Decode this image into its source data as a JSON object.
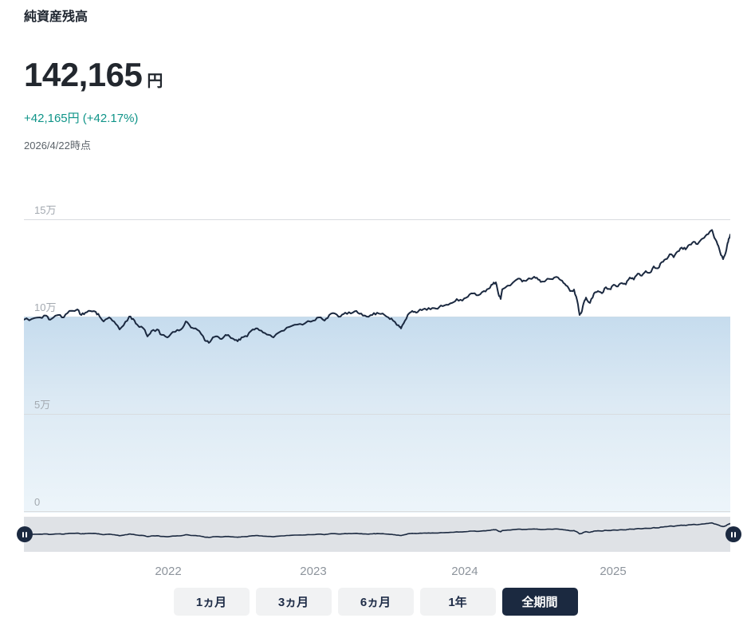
{
  "header": {
    "title": "純資産残高",
    "amount": "142,165",
    "amount_unit": "円",
    "change": "+42,165円 (+42.17%)",
    "as_of": "2026/4/22時点"
  },
  "colors": {
    "line": "#1b2940",
    "gain_text": "#0f9488",
    "area_fill_top": "#c6dcee",
    "area_fill_bottom": "#edf5fa",
    "gridline": "#d9dcdf",
    "tick_label": "#a3a9b0",
    "year_label": "#8d949c",
    "slider_track": "#dfe2e6",
    "handle": "#1b2940",
    "button_bg": "#f1f2f3",
    "button_text": "#1e2c47",
    "button_active_bg": "#1b2940",
    "button_active_text": "#ffffff"
  },
  "chart_data": {
    "type": "area",
    "title": "純資産残高の推移",
    "unit": "円",
    "ylim": [
      0,
      158000
    ],
    "grid": true,
    "principal_band_top_value": 100000,
    "end_value": 142165,
    "y_ticks": [
      {
        "label": "15万",
        "value": 150000,
        "line": true
      },
      {
        "label": "10万",
        "value": 100000,
        "line": false
      },
      {
        "label": "5万",
        "value": 50000,
        "line": true
      },
      {
        "label": "0",
        "value": 0,
        "line": true
      }
    ],
    "x_ticks": [
      {
        "label": "2022",
        "f": 0.2043
      },
      {
        "label": "2023",
        "f": 0.4097
      },
      {
        "label": "2024",
        "f": 0.6241
      },
      {
        "label": "2025",
        "f": 0.8341
      }
    ],
    "series": [
      {
        "name": "純資産残高",
        "points": [
          [
            0.0,
            98400
          ],
          [
            0.0113,
            98800
          ],
          [
            0.0226,
            99600
          ],
          [
            0.0316,
            100500
          ],
          [
            0.0372,
            98400
          ],
          [
            0.0485,
            100800
          ],
          [
            0.0564,
            99600
          ],
          [
            0.0643,
            102900
          ],
          [
            0.0756,
            103700
          ],
          [
            0.0813,
            100800
          ],
          [
            0.0869,
            102000
          ],
          [
            0.0937,
            102900
          ],
          [
            0.1016,
            102500
          ],
          [
            0.1072,
            100000
          ],
          [
            0.1129,
            97500
          ],
          [
            0.1208,
            99600
          ],
          [
            0.1275,
            97500
          ],
          [
            0.1354,
            93400
          ],
          [
            0.1411,
            95500
          ],
          [
            0.149,
            100000
          ],
          [
            0.1546,
            98800
          ],
          [
            0.1603,
            95900
          ],
          [
            0.1693,
            93900
          ],
          [
            0.1749,
            89800
          ],
          [
            0.1806,
            92600
          ],
          [
            0.1885,
            93400
          ],
          [
            0.1952,
            90600
          ],
          [
            0.2031,
            89300
          ],
          [
            0.2088,
            91400
          ],
          [
            0.2144,
            92200
          ],
          [
            0.2223,
            93400
          ],
          [
            0.2291,
            97500
          ],
          [
            0.2347,
            95500
          ],
          [
            0.2404,
            93900
          ],
          [
            0.2483,
            92600
          ],
          [
            0.2562,
            87700
          ],
          [
            0.2618,
            86500
          ],
          [
            0.2675,
            89300
          ],
          [
            0.2742,
            89800
          ],
          [
            0.2799,
            88500
          ],
          [
            0.2855,
            90600
          ],
          [
            0.2912,
            89800
          ],
          [
            0.2968,
            88500
          ],
          [
            0.3025,
            87300
          ],
          [
            0.3081,
            89300
          ],
          [
            0.316,
            89800
          ],
          [
            0.3239,
            93400
          ],
          [
            0.3307,
            93900
          ],
          [
            0.3386,
            91800
          ],
          [
            0.3465,
            90600
          ],
          [
            0.3533,
            89300
          ],
          [
            0.3646,
            92600
          ],
          [
            0.3758,
            94700
          ],
          [
            0.3871,
            95900
          ],
          [
            0.3984,
            96700
          ],
          [
            0.4097,
            97900
          ],
          [
            0.4176,
            99600
          ],
          [
            0.4255,
            97900
          ],
          [
            0.4323,
            100800
          ],
          [
            0.4402,
            101600
          ],
          [
            0.4481,
            100000
          ],
          [
            0.4549,
            102000
          ],
          [
            0.4628,
            101600
          ],
          [
            0.4707,
            102900
          ],
          [
            0.4774,
            101600
          ],
          [
            0.4853,
            100000
          ],
          [
            0.4932,
            100800
          ],
          [
            0.5,
            102000
          ],
          [
            0.5079,
            101600
          ],
          [
            0.5158,
            99600
          ],
          [
            0.5226,
            97900
          ],
          [
            0.5305,
            95500
          ],
          [
            0.5339,
            93900
          ],
          [
            0.5395,
            97900
          ],
          [
            0.5452,
            101600
          ],
          [
            0.5497,
            102900
          ],
          [
            0.5553,
            102000
          ],
          [
            0.561,
            103700
          ],
          [
            0.5677,
            104100
          ],
          [
            0.5756,
            103700
          ],
          [
            0.5835,
            104100
          ],
          [
            0.5903,
            105700
          ],
          [
            0.5982,
            106100
          ],
          [
            0.6061,
            107000
          ],
          [
            0.6128,
            109000
          ],
          [
            0.6207,
            108200
          ],
          [
            0.6286,
            110200
          ],
          [
            0.6354,
            111900
          ],
          [
            0.6433,
            111000
          ],
          [
            0.6512,
            113100
          ],
          [
            0.658,
            114300
          ],
          [
            0.6636,
            116500
          ],
          [
            0.6682,
            117600
          ],
          [
            0.6716,
            112000
          ],
          [
            0.6749,
            109000
          ],
          [
            0.6772,
            114000
          ],
          [
            0.6885,
            116000
          ],
          [
            0.6998,
            119500
          ],
          [
            0.7054,
            118000
          ],
          [
            0.7111,
            118400
          ],
          [
            0.7223,
            120500
          ],
          [
            0.728,
            119000
          ],
          [
            0.7336,
            118000
          ],
          [
            0.7449,
            119300
          ],
          [
            0.7506,
            120000
          ],
          [
            0.7562,
            120100
          ],
          [
            0.7619,
            118500
          ],
          [
            0.7675,
            116000
          ],
          [
            0.7732,
            113100
          ],
          [
            0.7788,
            113900
          ],
          [
            0.7833,
            108200
          ],
          [
            0.7867,
            100800
          ],
          [
            0.7901,
            102900
          ],
          [
            0.7935,
            108000
          ],
          [
            0.7957,
            109800
          ],
          [
            0.8014,
            107000
          ],
          [
            0.807,
            111900
          ],
          [
            0.8126,
            113100
          ],
          [
            0.8183,
            112000
          ],
          [
            0.8239,
            115100
          ],
          [
            0.8307,
            114000
          ],
          [
            0.8352,
            116400
          ],
          [
            0.8409,
            115500
          ],
          [
            0.8465,
            117200
          ],
          [
            0.8521,
            116500
          ],
          [
            0.8578,
            120100
          ],
          [
            0.8634,
            119000
          ],
          [
            0.8691,
            122100
          ],
          [
            0.8747,
            121000
          ],
          [
            0.8804,
            123400
          ],
          [
            0.886,
            122500
          ],
          [
            0.8917,
            125800
          ],
          [
            0.8973,
            124800
          ],
          [
            0.9029,
            128000
          ],
          [
            0.9086,
            129500
          ],
          [
            0.9142,
            132000
          ],
          [
            0.9199,
            130500
          ],
          [
            0.9255,
            133500
          ],
          [
            0.9312,
            135500
          ],
          [
            0.9368,
            134500
          ],
          [
            0.9425,
            137000
          ],
          [
            0.9481,
            138500
          ],
          [
            0.9537,
            137200
          ],
          [
            0.9594,
            139800
          ],
          [
            0.965,
            141500
          ],
          [
            0.9707,
            143500
          ],
          [
            0.9741,
            144500
          ],
          [
            0.9774,
            140500
          ],
          [
            0.982,
            137000
          ],
          [
            0.9853,
            133500
          ],
          [
            0.9898,
            129500
          ],
          [
            0.9932,
            132500
          ],
          [
            0.9955,
            136500
          ],
          [
            0.9977,
            140000
          ],
          [
            1.0,
            142165
          ]
        ]
      }
    ],
    "legend": []
  },
  "range_slider": {
    "left_handle_icon": "pause-icon",
    "right_handle_icon": "pause-icon"
  },
  "periods": [
    {
      "key": "1m",
      "label": "1ヵ月",
      "active": false
    },
    {
      "key": "3m",
      "label": "3ヵ月",
      "active": false
    },
    {
      "key": "6m",
      "label": "6ヵ月",
      "active": false
    },
    {
      "key": "1y",
      "label": "1年",
      "active": false
    },
    {
      "key": "all",
      "label": "全期間",
      "active": true
    }
  ]
}
